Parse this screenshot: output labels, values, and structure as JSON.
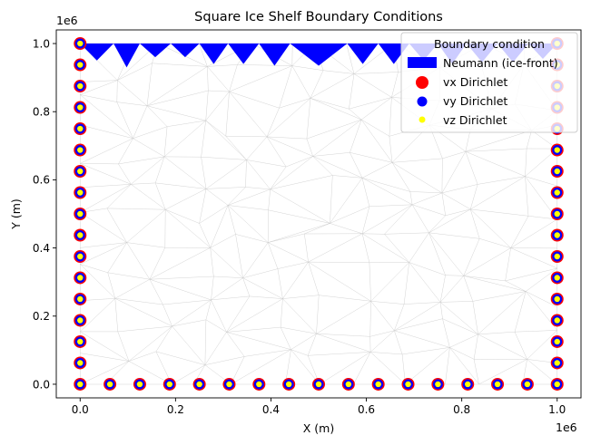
{
  "chart_data": {
    "type": "scatter",
    "title": "Square Ice Shelf Boundary Conditions",
    "xlabel": "X (m)",
    "ylabel": "Y (m)",
    "x_offset_label": "1e6",
    "y_offset_label": "1e6",
    "xlim": [
      -0.05,
      1.05
    ],
    "ylim": [
      -0.04,
      1.04
    ],
    "x_ticks": [
      {
        "value": 0.0,
        "label": "0.0"
      },
      {
        "value": 0.2,
        "label": "0.2"
      },
      {
        "value": 0.4,
        "label": "0.4"
      },
      {
        "value": 0.6,
        "label": "0.6"
      },
      {
        "value": 0.8,
        "label": "0.8"
      },
      {
        "value": 1.0,
        "label": "1.0"
      }
    ],
    "y_ticks": [
      {
        "value": 0.0,
        "label": "0.0"
      },
      {
        "value": 0.2,
        "label": "0.2"
      },
      {
        "value": 0.4,
        "label": "0.4"
      },
      {
        "value": 0.6,
        "label": "0.6"
      },
      {
        "value": 0.8,
        "label": "0.8"
      },
      {
        "value": 1.0,
        "label": "1.0"
      }
    ],
    "grid": false,
    "legend": {
      "title": "Boundary condition",
      "placement": "top-right",
      "entries": [
        {
          "label": "Neumann (ice-front)",
          "marker": "rectangle",
          "color": "#0000ff"
        },
        {
          "label": "vx Dirichlet",
          "marker": "circle-large",
          "color": "#ff0000"
        },
        {
          "label": "vy Dirichlet",
          "marker": "circle-medium",
          "color": "#0000ff"
        },
        {
          "label": "vz Dirichlet",
          "marker": "circle-small",
          "color": "#ffff00"
        }
      ]
    },
    "colors": {
      "vx": "#ff0000",
      "vy": "#0000ff",
      "vz": "#ffff00",
      "neumann": "#0000ff",
      "mesh": "#c8c8c8"
    },
    "dirichlet_nodes": [
      [
        0,
        0
      ],
      [
        0.0625,
        0
      ],
      [
        0.125,
        0
      ],
      [
        0.1875,
        0
      ],
      [
        0.25,
        0
      ],
      [
        0.3125,
        0
      ],
      [
        0.375,
        0
      ],
      [
        0.4375,
        0
      ],
      [
        0.5,
        0
      ],
      [
        0.5625,
        0
      ],
      [
        0.625,
        0
      ],
      [
        0.6875,
        0
      ],
      [
        0.75,
        0
      ],
      [
        0.8125,
        0
      ],
      [
        0.875,
        0
      ],
      [
        0.9375,
        0
      ],
      [
        1,
        0
      ],
      [
        0,
        0.0625
      ],
      [
        0,
        0.125
      ],
      [
        0,
        0.1875
      ],
      [
        0,
        0.25
      ],
      [
        0,
        0.3125
      ],
      [
        0,
        0.375
      ],
      [
        0,
        0.4375
      ],
      [
        0,
        0.5
      ],
      [
        0,
        0.5625
      ],
      [
        0,
        0.625
      ],
      [
        0,
        0.6875
      ],
      [
        0,
        0.75
      ],
      [
        0,
        0.8125
      ],
      [
        0,
        0.875
      ],
      [
        0,
        0.9375
      ],
      [
        0,
        1
      ],
      [
        1,
        0.0625
      ],
      [
        1,
        0.125
      ],
      [
        1,
        0.1875
      ],
      [
        1,
        0.25
      ],
      [
        1,
        0.3125
      ],
      [
        1,
        0.375
      ],
      [
        1,
        0.4375
      ],
      [
        1,
        0.5
      ],
      [
        1,
        0.5625
      ],
      [
        1,
        0.625
      ],
      [
        1,
        0.6875
      ],
      [
        1,
        0.75
      ],
      [
        1,
        0.8125
      ],
      [
        1,
        0.875
      ],
      [
        1,
        0.9375
      ],
      [
        1,
        1
      ]
    ],
    "neumann_front": {
      "y": 1.0,
      "triangles": [
        [
          0.0,
          0.07,
          0.95
        ],
        [
          0.07,
          0.125,
          0.93
        ],
        [
          0.125,
          0.19,
          0.96
        ],
        [
          0.19,
          0.25,
          0.96
        ],
        [
          0.25,
          0.31,
          0.94
        ],
        [
          0.31,
          0.375,
          0.94
        ],
        [
          0.375,
          0.44,
          0.935
        ],
        [
          0.44,
          0.56,
          0.935
        ],
        [
          0.56,
          0.625,
          0.94
        ],
        [
          0.625,
          0.69,
          0.94
        ],
        [
          0.69,
          0.75,
          0.95
        ],
        [
          0.75,
          0.81,
          0.94
        ],
        [
          0.81,
          0.875,
          0.945
        ],
        [
          0.875,
          0.94,
          0.945
        ],
        [
          0.94,
          1.0,
          0.955
        ]
      ]
    }
  }
}
